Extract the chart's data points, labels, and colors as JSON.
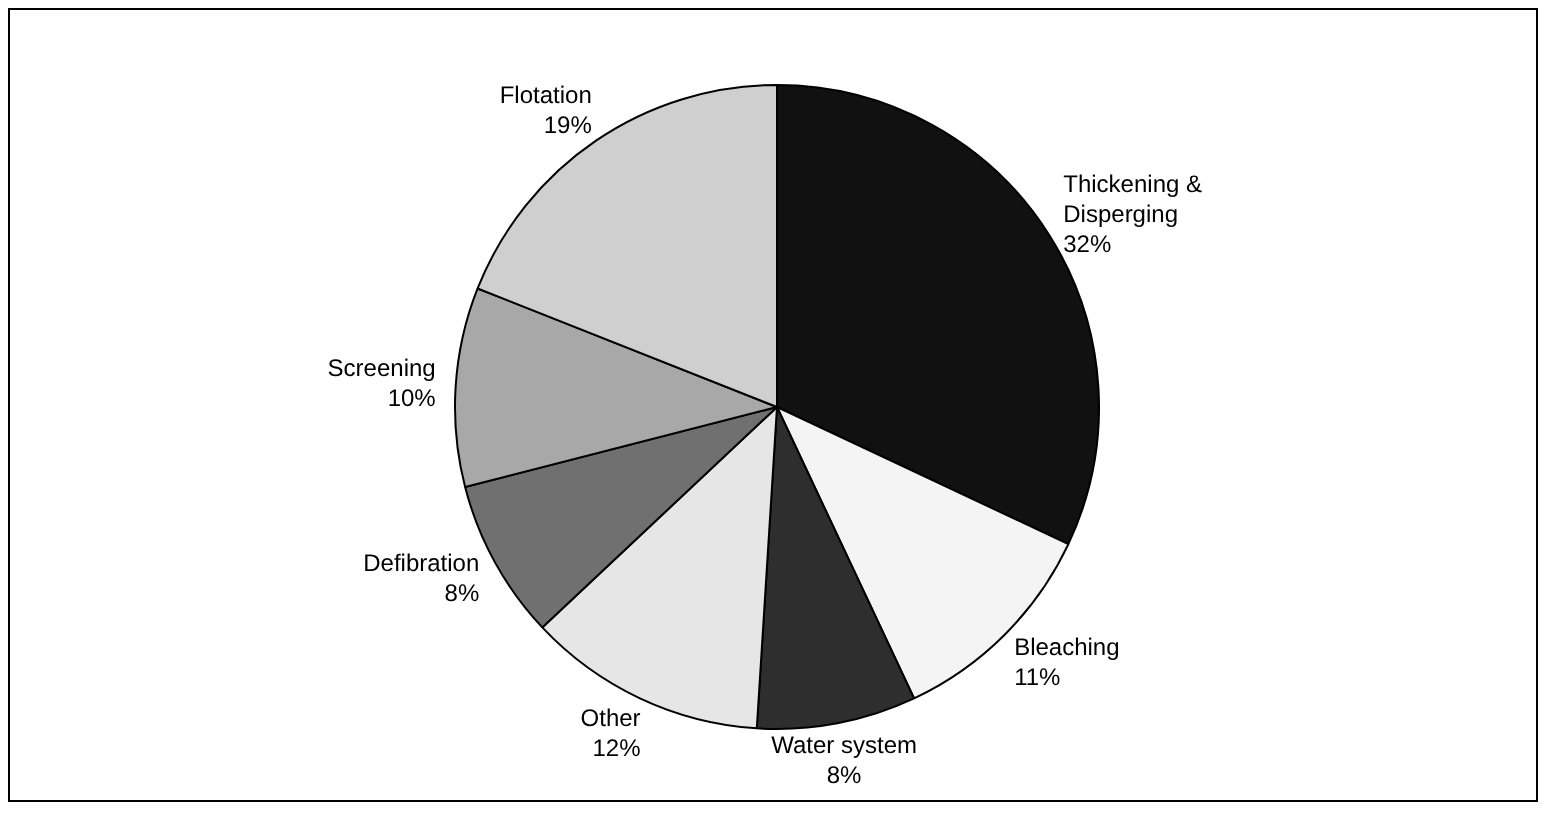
{
  "chart_data": {
    "type": "pie",
    "categories": [
      "Thickening & Disperging",
      "Bleaching",
      "Water system",
      "Other",
      "Defibration",
      "Screening",
      "Flotation"
    ],
    "values": [
      32,
      11,
      8,
      12,
      8,
      10,
      19
    ],
    "colors": [
      "#111111",
      "#f4f4f4",
      "#2e2e2e",
      "#e6e6e6",
      "#707070",
      "#a8a8a8",
      "#cfcfcf"
    ],
    "value_labels": [
      "32%",
      "11%",
      "8%",
      "12%",
      "8%",
      "10%",
      "19%"
    ],
    "legend": false
  }
}
